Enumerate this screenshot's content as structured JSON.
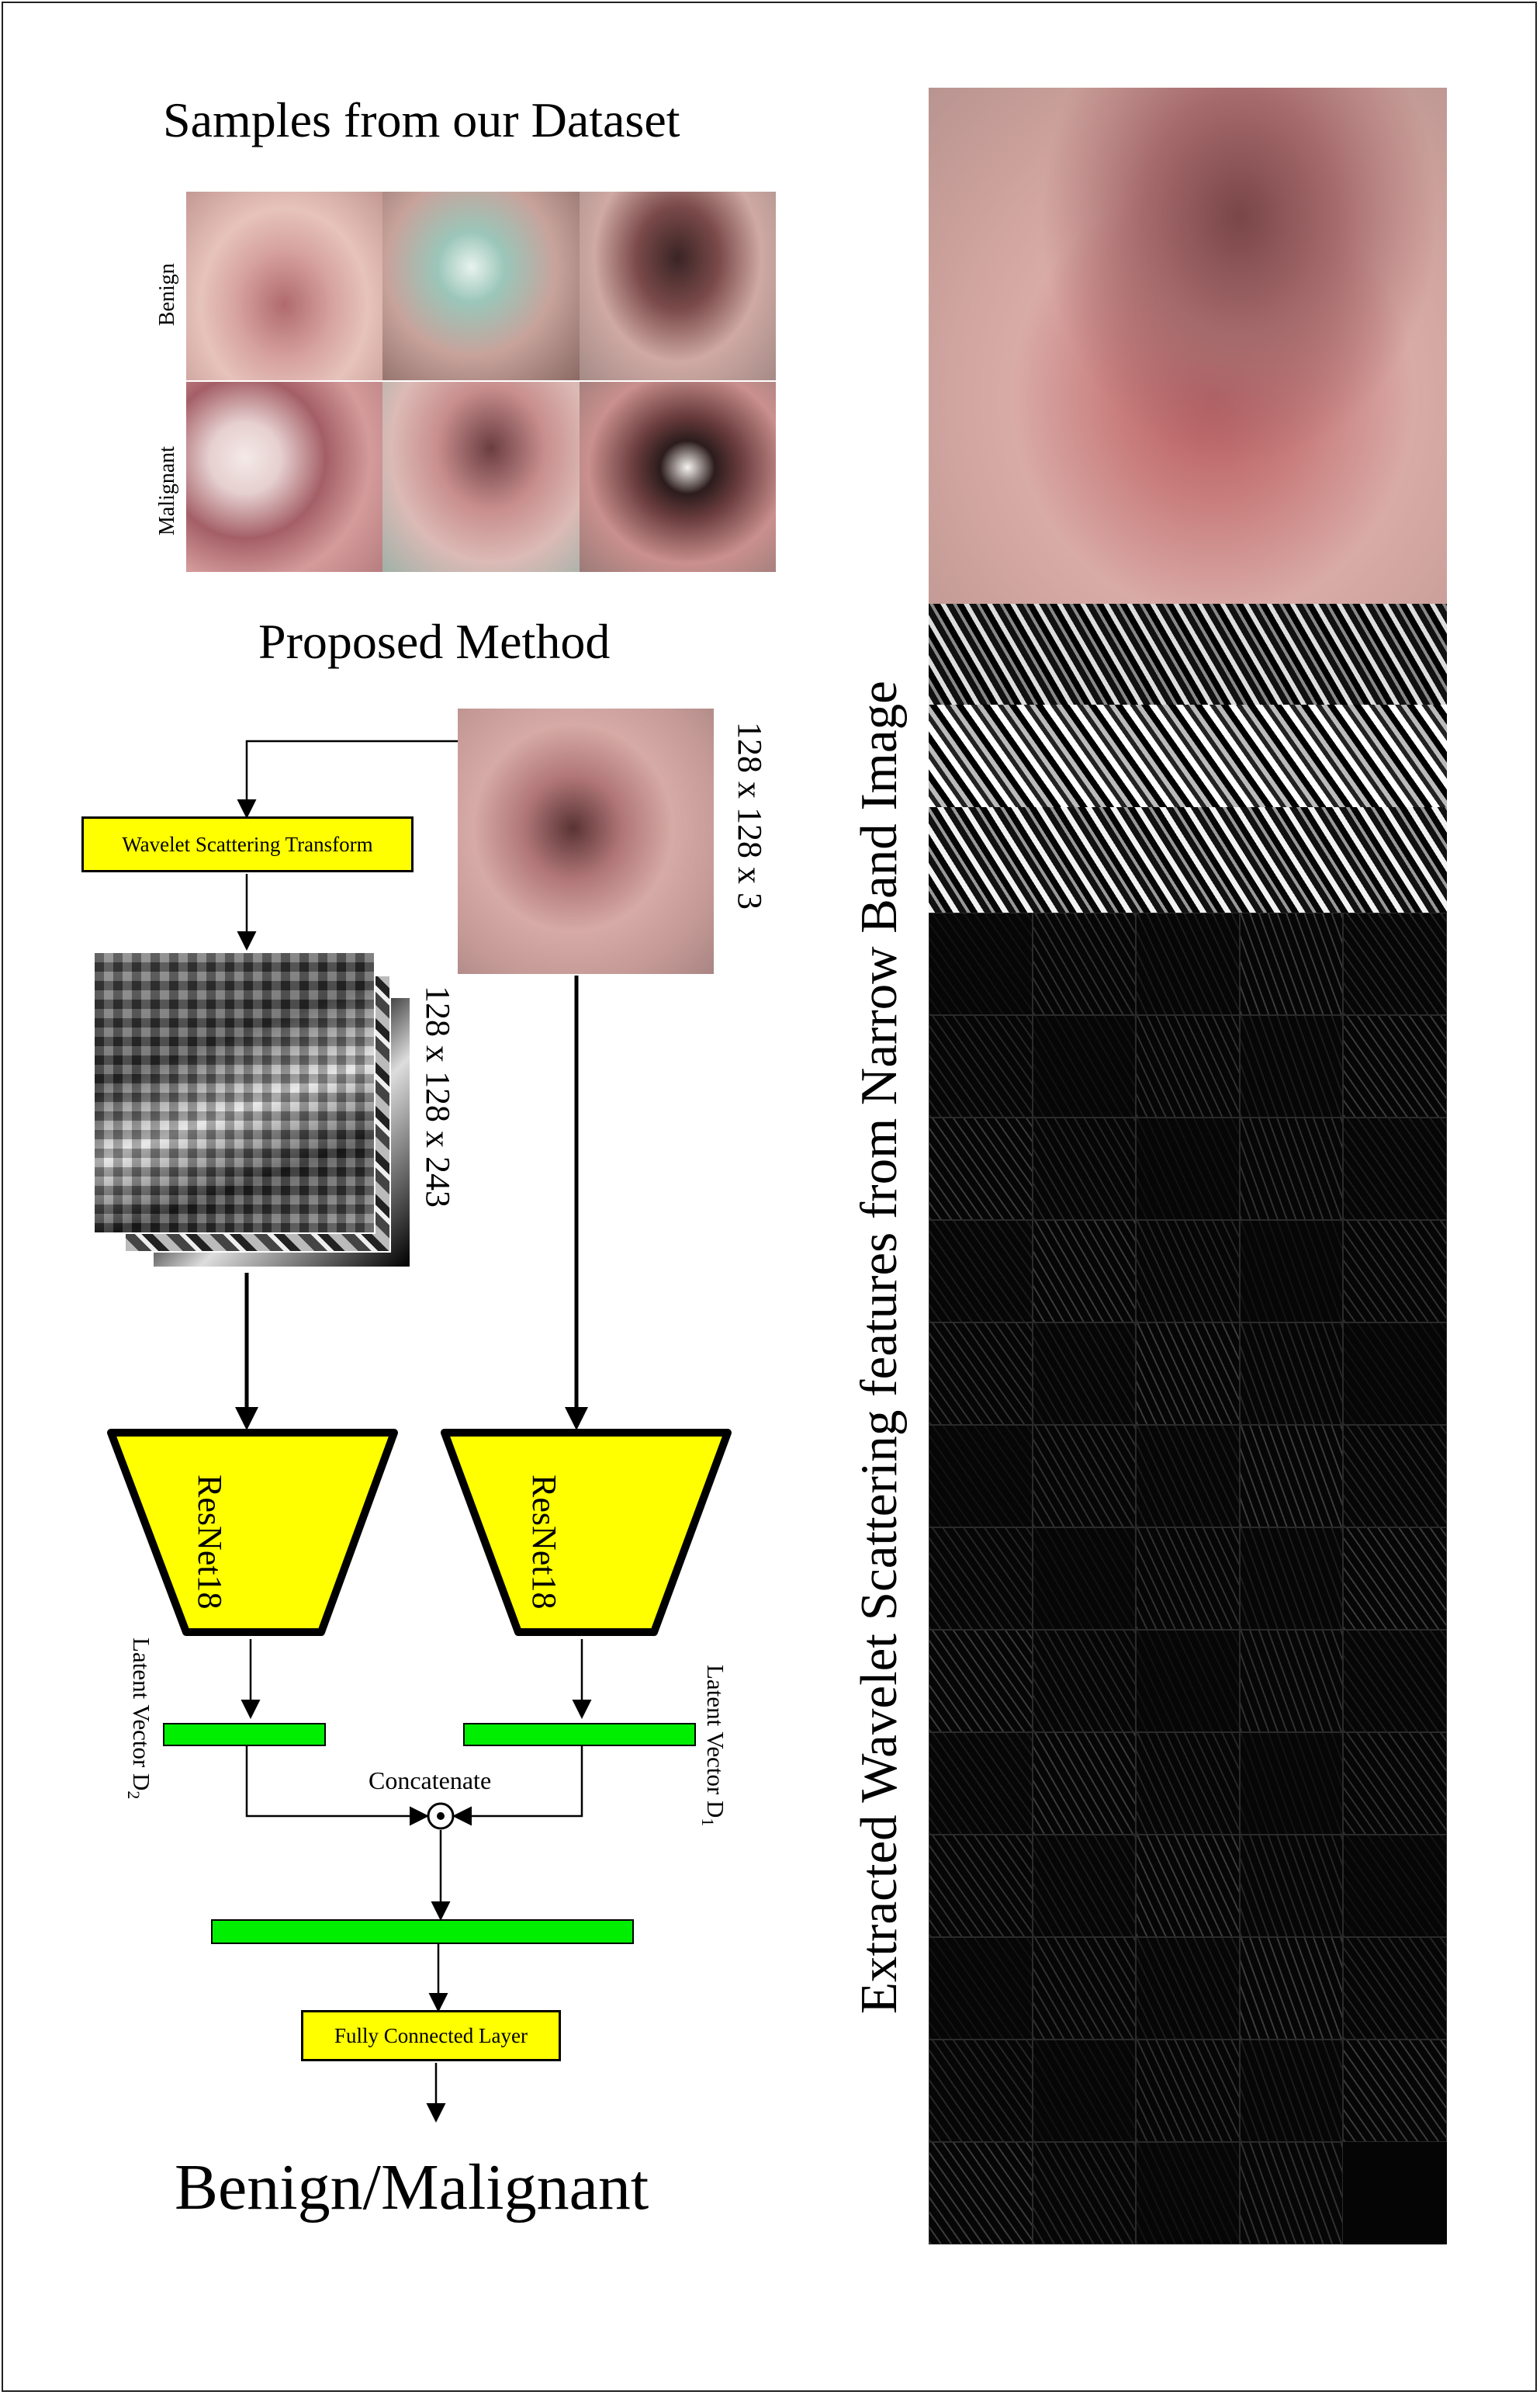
{
  "samples": {
    "title": "Samples from our Dataset",
    "row_labels": [
      "Benign",
      "Malignant"
    ]
  },
  "method": {
    "title": "Proposed Method",
    "wst_label": "Wavelet Scattering Transform",
    "input_dims": "128 x 128 x 3",
    "feature_dims": "128 x 128 x 243",
    "backbone_left": "ResNet18",
    "backbone_right": "ResNet18",
    "latent_left": "Latent Vector D",
    "latent_left_sub": "2",
    "latent_right": "Latent Vector D",
    "latent_right_sub": "1",
    "concat_label": "Concatenate",
    "concat_symbol": "⊙",
    "fc_label": "Fully Connected Layer",
    "output_label": "Benign/Malignant"
  },
  "right_panel": {
    "vertical_title": "Extracted Wavelet Scattering features from Narrow Band Image"
  },
  "colors": {
    "block_yellow": "#ffff00",
    "latent_green": "#00ee00",
    "tissue_pink": "#c98d8d",
    "feature_black": "#050505"
  },
  "icons": {
    "concatenate": "circled-dot-icon"
  }
}
